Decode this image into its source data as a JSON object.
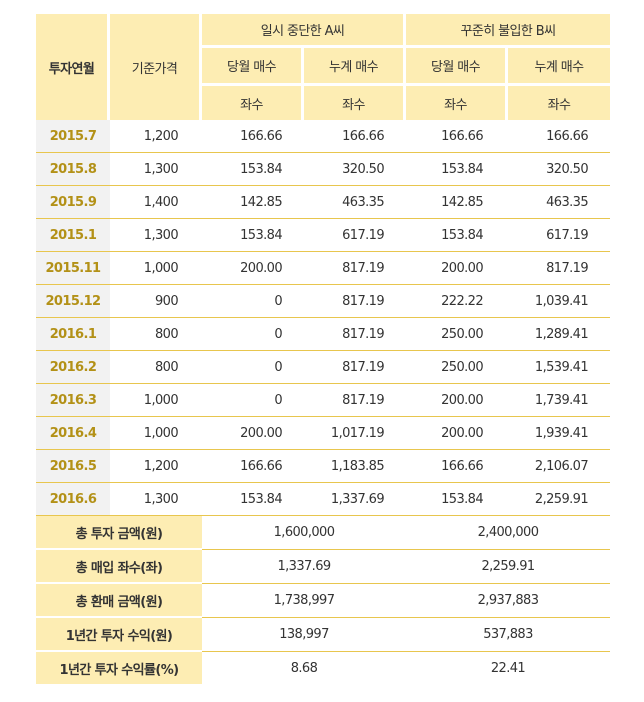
{
  "header": {
    "col_month": "투자연월",
    "col_price": "기준가격",
    "group_a": "일시 중단한 A씨",
    "group_b": "꾸준히 불입한 B씨",
    "monthly_buy": "당월 매수",
    "cumulative_buy": "누계 매수",
    "unit": "좌수"
  },
  "rows": [
    {
      "month": "2015.7",
      "price": "1,200",
      "a_month": "166.66",
      "a_cum": "166.66",
      "b_month": "166.66",
      "b_cum": "166.66"
    },
    {
      "month": "2015.8",
      "price": "1,300",
      "a_month": "153.84",
      "a_cum": "320.50",
      "b_month": "153.84",
      "b_cum": "320.50"
    },
    {
      "month": "2015.9",
      "price": "1,400",
      "a_month": "142.85",
      "a_cum": "463.35",
      "b_month": "142.85",
      "b_cum": "463.35"
    },
    {
      "month": "2015.1",
      "price": "1,300",
      "a_month": "153.84",
      "a_cum": "617.19",
      "b_month": "153.84",
      "b_cum": "617.19"
    },
    {
      "month": "2015.11",
      "price": "1,000",
      "a_month": "200.00",
      "a_cum": "817.19",
      "b_month": "200.00",
      "b_cum": "817.19"
    },
    {
      "month": "2015.12",
      "price": "900",
      "a_month": "0",
      "a_cum": "817.19",
      "b_month": "222.22",
      "b_cum": "1,039.41"
    },
    {
      "month": "2016.1",
      "price": "800",
      "a_month": "0",
      "a_cum": "817.19",
      "b_month": "250.00",
      "b_cum": "1,289.41"
    },
    {
      "month": "2016.2",
      "price": "800",
      "a_month": "0",
      "a_cum": "817.19",
      "b_month": "250.00",
      "b_cum": "1,539.41"
    },
    {
      "month": "2016.3",
      "price": "1,000",
      "a_month": "0",
      "a_cum": "817.19",
      "b_month": "200.00",
      "b_cum": "1,739.41"
    },
    {
      "month": "2016.4",
      "price": "1,000",
      "a_month": "200.00",
      "a_cum": "1,017.19",
      "b_month": "200.00",
      "b_cum": "1,939.41"
    },
    {
      "month": "2016.5",
      "price": "1,200",
      "a_month": "166.66",
      "a_cum": "1,183.85",
      "b_month": "166.66",
      "b_cum": "2,106.07"
    },
    {
      "month": "2016.6",
      "price": "1,300",
      "a_month": "153.84",
      "a_cum": "1,337.69",
      "b_month": "153.84",
      "b_cum": "2,259.91"
    }
  ],
  "summary": [
    {
      "label": "총 투자 금액(원)",
      "a": "1,600,000",
      "b": "2,400,000"
    },
    {
      "label": "총 매입 좌수(좌)",
      "a": "1,337.69",
      "b": "2,259.91"
    },
    {
      "label": "총 환매 금액(원)",
      "a": "1,738,997",
      "b": "2,937,883"
    },
    {
      "label": "1년간 투자 수익(원)",
      "a": "138,997",
      "b": "537,883"
    },
    {
      "label": "1년간 투자 수익률(%)",
      "a": "8.68",
      "b": "22.41"
    }
  ]
}
